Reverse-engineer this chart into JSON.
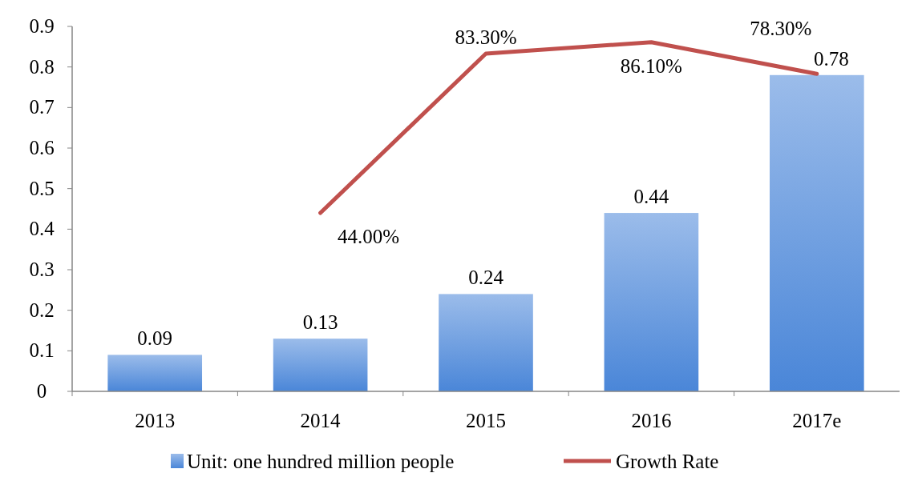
{
  "chart_data": {
    "type": "bar",
    "categories": [
      "2013",
      "2014",
      "2015",
      "2016",
      "2017e"
    ],
    "series": [
      {
        "name": "Unit: one hundred million people",
        "color": "#4a86d8",
        "values": [
          0.09,
          0.13,
          0.24,
          0.44,
          0.78
        ],
        "value_labels": [
          "0.09",
          "0.13",
          "0.24",
          "0.44",
          "0.78"
        ]
      },
      {
        "name": "Growth Rate",
        "type": "line",
        "color": "#c0504d",
        "values": [
          null,
          0.44,
          0.833,
          0.861,
          0.783
        ],
        "value_labels": [
          null,
          "44.00%",
          "83.30%",
          "86.10%",
          "78.30%"
        ]
      }
    ],
    "ylim": [
      0,
      0.9
    ],
    "yticks": [
      0,
      0.1,
      0.2,
      0.3,
      0.4,
      0.5,
      0.6,
      0.7,
      0.8,
      0.9
    ],
    "grid": false,
    "legend": "bottom"
  }
}
